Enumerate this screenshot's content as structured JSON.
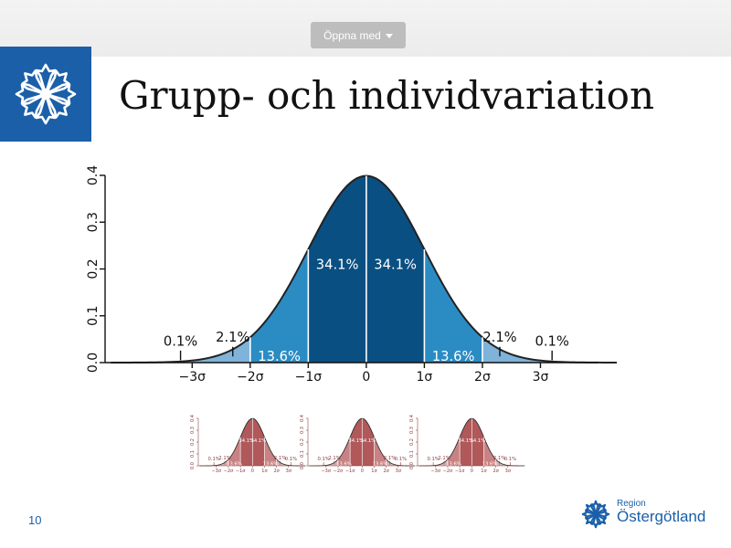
{
  "toolbar": {
    "open_with_label": "Öppna med"
  },
  "slide": {
    "title": "Grupp- och individvariation",
    "number": "10",
    "brand_line1": "Region",
    "brand_line2": "Östergötland",
    "accent_color": "#1a5fa8"
  },
  "icons": {
    "caret": "chevron-down-icon",
    "logo": "cornflower-icon"
  },
  "chart_data": {
    "type": "area",
    "title": "",
    "xlabel": "",
    "ylabel": "",
    "x_ticks": [
      "−3σ",
      "−2σ",
      "−1σ",
      "0",
      "1σ",
      "2σ",
      "3σ"
    ],
    "y_ticks": [
      "0.0",
      "0.1",
      "0.2",
      "0.3",
      "0.4"
    ],
    "xlim": [
      -4.5,
      4
    ],
    "ylim": [
      0,
      0.4
    ],
    "band_labels": [
      {
        "text": "0.1%",
        "x": -3.2
      },
      {
        "text": "2.1%",
        "x": -2.3
      },
      {
        "text": "13.6%",
        "x": -1.5
      },
      {
        "text": "34.1%",
        "x": -0.5
      },
      {
        "text": "34.1%",
        "x": 0.5
      },
      {
        "text": "13.6%",
        "x": 1.5
      },
      {
        "text": "2.1%",
        "x": 2.3
      },
      {
        "text": "0.1%",
        "x": 3.2
      }
    ],
    "band_colors": [
      "#cfdff0",
      "#7fb3d9",
      "#2b8cc4",
      "#0a4f82"
    ]
  },
  "thumbnail_charts": {
    "count": 3,
    "color_dark": "#b0585a",
    "color_mid": "#c98283",
    "color_light": "#dcb0b1"
  }
}
